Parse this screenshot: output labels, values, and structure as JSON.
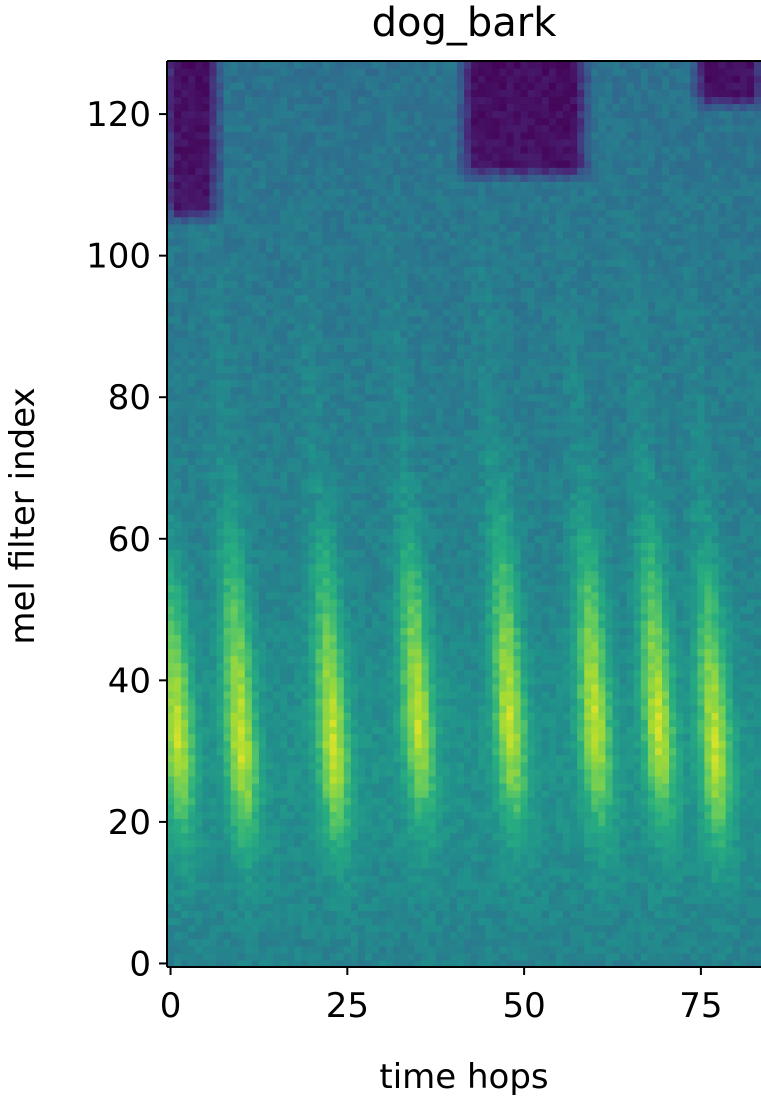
{
  "chart_data": {
    "type": "heatmap",
    "title": "dog_bark",
    "xlabel": "time hops",
    "ylabel": "mel filter index",
    "xlim": [
      -0.5,
      83.5
    ],
    "ylim": [
      -0.5,
      127.5
    ],
    "x_ticks": [
      0,
      25,
      50,
      75
    ],
    "y_ticks": [
      0,
      20,
      40,
      60,
      80,
      100,
      120
    ],
    "colormap": "viridis",
    "n_time_hops": 84,
    "n_mel_filters": 128,
    "grid": false,
    "legend": "none",
    "vertical_bands": [
      {
        "center_hop": 1,
        "peak_mel": 33,
        "top_mel": 60
      },
      {
        "center_hop": 10,
        "peak_mel": 31,
        "top_mel": 68
      },
      {
        "center_hop": 23,
        "peak_mel": 31,
        "top_mel": 66
      },
      {
        "center_hop": 35,
        "peak_mel": 35,
        "top_mel": 66
      },
      {
        "center_hop": 48,
        "peak_mel": 34,
        "top_mel": 70
      },
      {
        "center_hop": 60,
        "peak_mel": 34,
        "top_mel": 68
      },
      {
        "center_hop": 69,
        "peak_mel": 34,
        "top_mel": 68
      },
      {
        "center_hop": 77,
        "peak_mel": 31,
        "top_mel": 62
      }
    ],
    "dark_regions": [
      {
        "hop_from": 0,
        "hop_to": 6,
        "mel_from": 106,
        "mel_to": 127
      },
      {
        "hop_from": 42,
        "hop_to": 58,
        "mel_from": 112,
        "mel_to": 127
      },
      {
        "hop_from": 75,
        "hop_to": 83,
        "mel_from": 122,
        "mel_to": 127
      }
    ]
  }
}
